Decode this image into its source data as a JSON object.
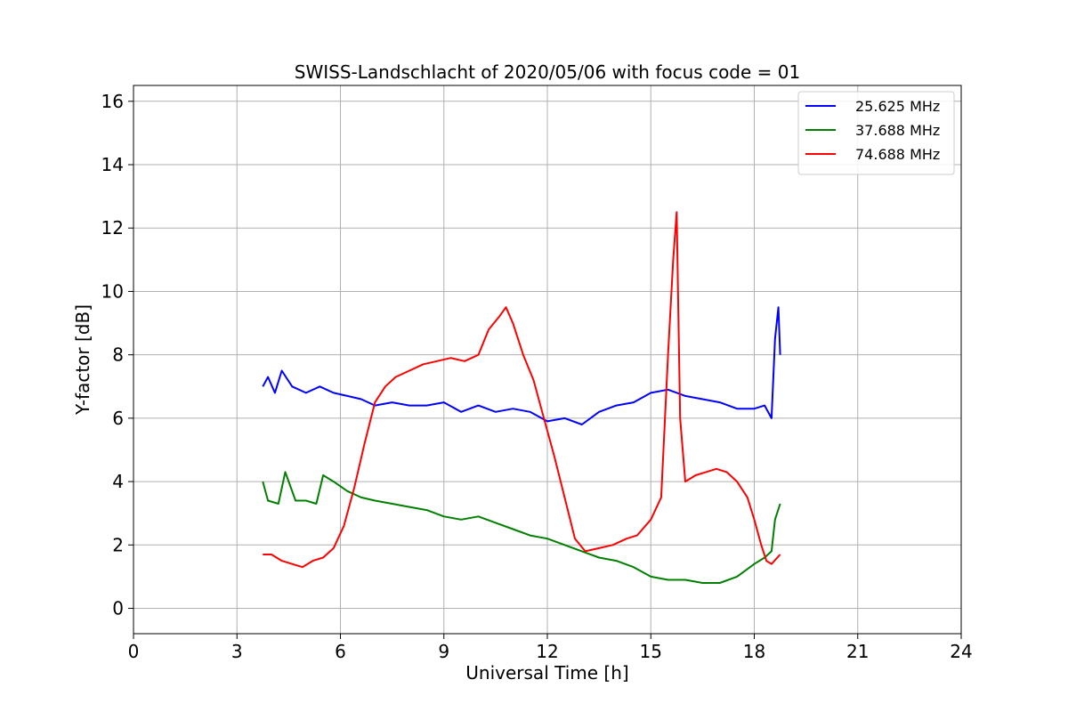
{
  "chart_data": {
    "type": "line",
    "title": "SWISS-Landschlacht of 2020/05/06 with focus code = 01",
    "xlabel": "Universal Time [h]",
    "ylabel": "Y-factor [dB]",
    "xlim": [
      0,
      24
    ],
    "ylim": [
      -0.8,
      16.5
    ],
    "xticks": [
      0,
      3,
      6,
      9,
      12,
      15,
      18,
      21,
      24
    ],
    "yticks": [
      0,
      2,
      4,
      6,
      8,
      10,
      12,
      14,
      16
    ],
    "grid": true,
    "legend_position": "top-right",
    "series": [
      {
        "name": "25.625 MHz",
        "color": "#0000ff",
        "x": [
          3.75,
          3.9,
          4.1,
          4.3,
          4.6,
          5.0,
          5.4,
          5.8,
          6.2,
          6.6,
          7.0,
          7.5,
          8.0,
          8.5,
          9.0,
          9.5,
          10.0,
          10.5,
          11.0,
          11.5,
          12.0,
          12.5,
          13.0,
          13.5,
          14.0,
          14.5,
          15.0,
          15.5,
          16.0,
          16.5,
          17.0,
          17.5,
          18.0,
          18.3,
          18.5,
          18.6,
          18.7,
          18.75
        ],
        "y": [
          7.0,
          7.3,
          6.8,
          7.5,
          7.0,
          6.8,
          7.0,
          6.8,
          6.7,
          6.6,
          6.4,
          6.5,
          6.4,
          6.4,
          6.5,
          6.2,
          6.4,
          6.2,
          6.3,
          6.2,
          5.9,
          6.0,
          5.8,
          6.2,
          6.4,
          6.5,
          6.8,
          6.9,
          6.7,
          6.6,
          6.5,
          6.3,
          6.3,
          6.4,
          6.0,
          8.5,
          9.5,
          8.0
        ]
      },
      {
        "name": "37.688 MHz",
        "color": "#008000",
        "x": [
          3.75,
          3.9,
          4.2,
          4.4,
          4.7,
          5.0,
          5.3,
          5.5,
          5.8,
          6.2,
          6.6,
          7.0,
          7.5,
          8.0,
          8.5,
          9.0,
          9.5,
          10.0,
          10.5,
          11.0,
          11.5,
          12.0,
          12.5,
          13.0,
          13.5,
          14.0,
          14.5,
          15.0,
          15.5,
          16.0,
          16.5,
          17.0,
          17.5,
          18.0,
          18.3,
          18.5,
          18.6,
          18.75
        ],
        "y": [
          4.0,
          3.4,
          3.3,
          4.3,
          3.4,
          3.4,
          3.3,
          4.2,
          4.0,
          3.7,
          3.5,
          3.4,
          3.3,
          3.2,
          3.1,
          2.9,
          2.8,
          2.9,
          2.7,
          2.5,
          2.3,
          2.2,
          2.0,
          1.8,
          1.6,
          1.5,
          1.3,
          1.0,
          0.9,
          0.9,
          0.8,
          0.8,
          1.0,
          1.4,
          1.6,
          1.8,
          2.8,
          3.3
        ]
      },
      {
        "name": "74.688 MHz",
        "color": "#ff0000",
        "x": [
          3.75,
          4.0,
          4.3,
          4.6,
          4.9,
          5.2,
          5.5,
          5.8,
          6.1,
          6.4,
          6.7,
          7.0,
          7.3,
          7.6,
          8.0,
          8.4,
          8.8,
          9.2,
          9.6,
          10.0,
          10.3,
          10.6,
          10.8,
          11.0,
          11.3,
          11.6,
          11.9,
          12.2,
          12.5,
          12.8,
          13.1,
          13.5,
          13.9,
          14.3,
          14.6,
          15.0,
          15.3,
          15.5,
          15.65,
          15.75,
          15.85,
          16.0,
          16.3,
          16.6,
          16.9,
          17.2,
          17.5,
          17.8,
          18.0,
          18.2,
          18.35,
          18.5,
          18.75
        ],
        "y": [
          1.7,
          1.7,
          1.5,
          1.4,
          1.3,
          1.5,
          1.6,
          1.9,
          2.6,
          3.8,
          5.2,
          6.5,
          7.0,
          7.3,
          7.5,
          7.7,
          7.8,
          7.9,
          7.8,
          8.0,
          8.8,
          9.2,
          9.5,
          9.0,
          8.0,
          7.2,
          6.0,
          4.8,
          3.5,
          2.2,
          1.8,
          1.9,
          2.0,
          2.2,
          2.3,
          2.8,
          3.5,
          8.0,
          11.0,
          12.5,
          6.0,
          4.0,
          4.2,
          4.3,
          4.4,
          4.3,
          4.0,
          3.5,
          2.8,
          2.0,
          1.5,
          1.4,
          1.7
        ]
      }
    ]
  }
}
